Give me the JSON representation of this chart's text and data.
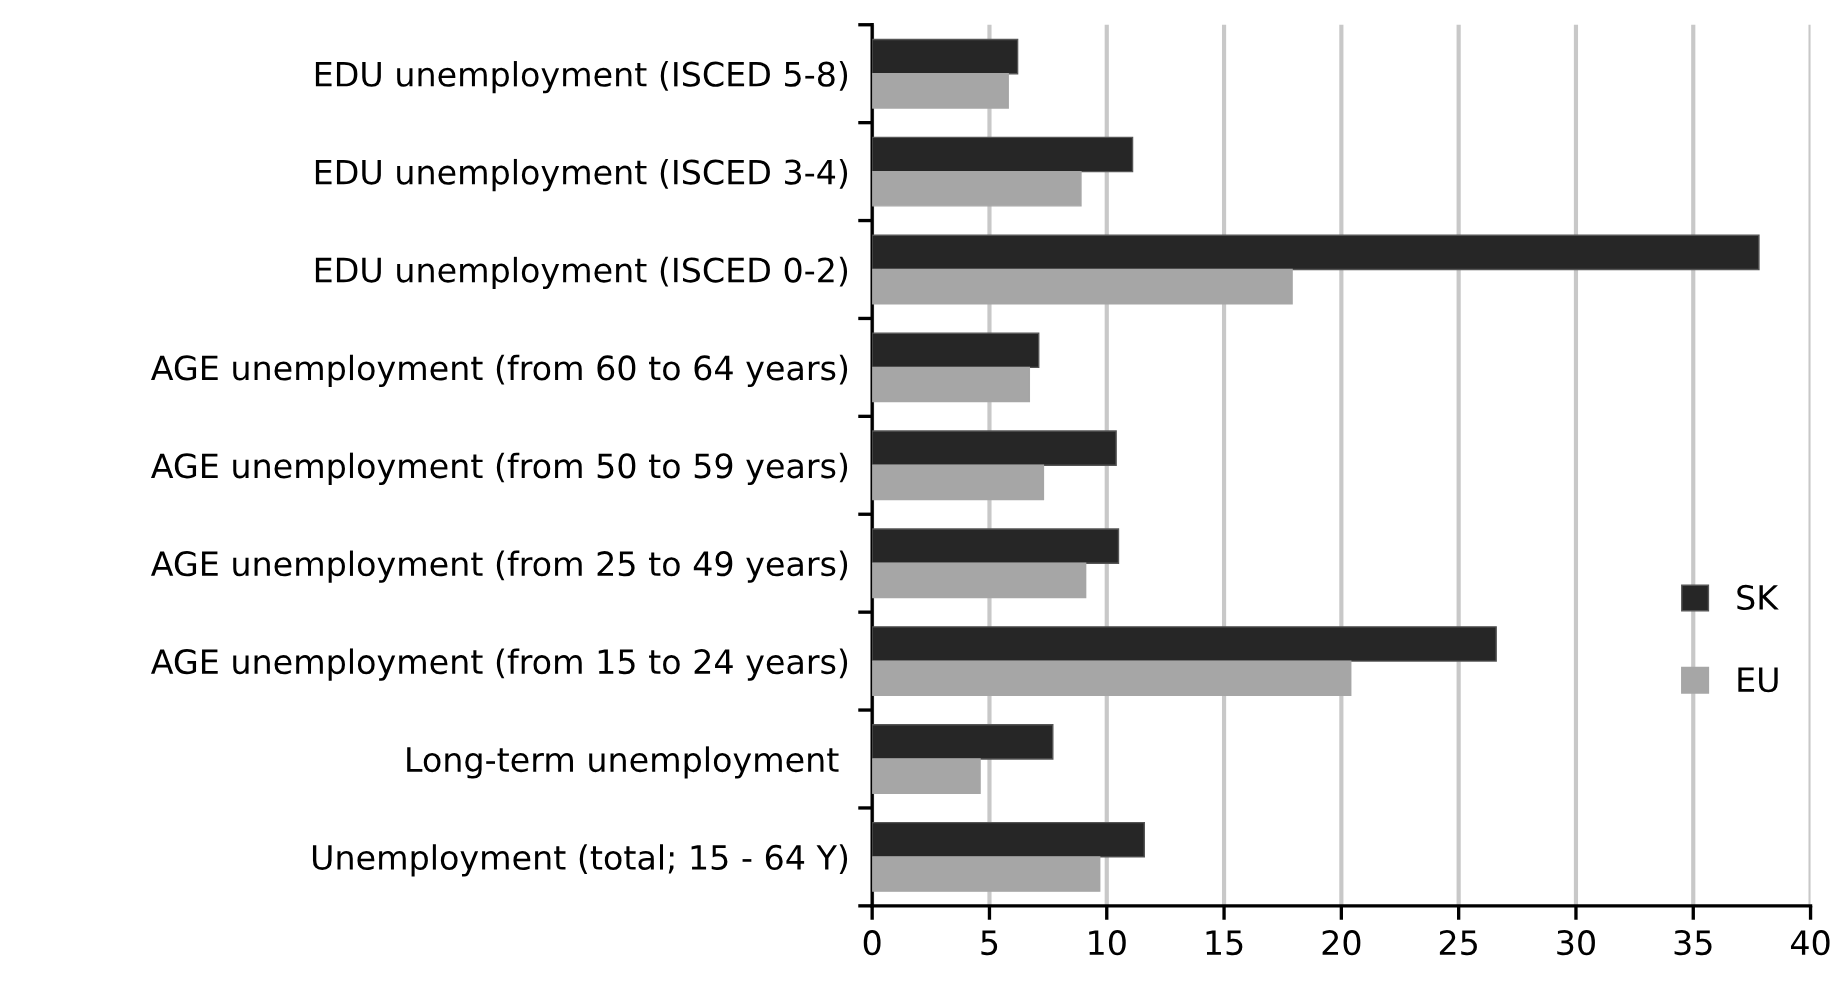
{
  "chart_data": {
    "type": "bar",
    "orientation": "horizontal",
    "categories": [
      "EDU unemployment (ISCED 5-8)",
      "EDU unemployment (ISCED 3-4)",
      "EDU unemployment (ISCED 0-2)",
      "AGE unemployment (from 60 to 64 years)",
      "AGE unemployment (from 50 to 59 years)",
      "AGE unemployment (from 25 to 49 years)",
      "AGE unemployment (from 15 to 24 years)",
      "Long-term unemployment ",
      "Unemployment (total; 15 - 64 Y)"
    ],
    "series": [
      {
        "name": "SK",
        "color": "#262626",
        "values": [
          6.2,
          11.1,
          37.8,
          7.1,
          10.4,
          10.5,
          26.6,
          7.7,
          11.6
        ]
      },
      {
        "name": "EU",
        "color": "#a6a6a6",
        "values": [
          5.8,
          8.9,
          17.9,
          6.7,
          7.3,
          9.1,
          20.4,
          4.6,
          9.7
        ]
      }
    ],
    "xlim": [
      0,
      40
    ],
    "xticks": [
      0,
      5,
      10,
      15,
      20,
      25,
      30,
      35,
      40
    ],
    "grid": "x",
    "legend": "right"
  }
}
